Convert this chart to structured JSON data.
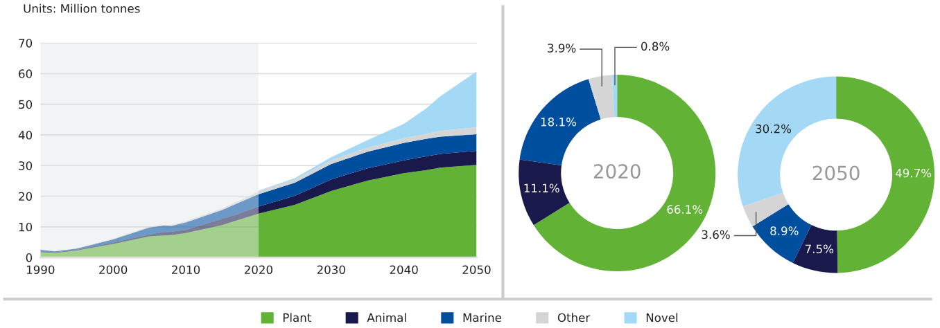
{
  "chart_data": [
    {
      "type": "area",
      "stacked": true,
      "ylabel": "Units: Million tonnes",
      "x": [
        1990,
        1992,
        1995,
        2000,
        2005,
        2007,
        2008,
        2010,
        2015,
        2017,
        2020,
        2025,
        2030,
        2035,
        2040,
        2043,
        2045,
        2050
      ],
      "series": [
        {
          "name": "Plant",
          "color": "#62b236",
          "values": [
            1.7,
            1.5,
            2.3,
            4.4,
            6.9,
            7.2,
            7.3,
            8.0,
            10.6,
            12.1,
            14.3,
            17.2,
            21.7,
            25.1,
            27.5,
            28.5,
            29.3,
            30.2
          ]
        },
        {
          "name": "Animal",
          "color": "#19194b",
          "values": [
            0.3,
            0.2,
            0.2,
            0.5,
            0.6,
            1.1,
            1.1,
            1.0,
            2.0,
            1.9,
            2.3,
            2.9,
            3.8,
            4.0,
            4.2,
            4.5,
            4.5,
            4.6
          ]
        },
        {
          "name": "Marine",
          "color": "#004f9e",
          "values": [
            0.5,
            0.3,
            0.4,
            1.0,
            2.3,
            2.1,
            1.9,
            2.4,
            2.9,
            3.6,
            4.0,
            4.3,
            5.0,
            5.4,
            5.7,
            5.7,
            5.6,
            5.4
          ]
        },
        {
          "name": "Other",
          "color": "#d5d5d5",
          "values": [
            0.1,
            0.1,
            0.1,
            0.2,
            0.3,
            0.3,
            0.3,
            0.4,
            0.5,
            0.6,
            1.0,
            1.1,
            1.2,
            1.3,
            1.5,
            1.6,
            1.9,
            2.3
          ]
        },
        {
          "name": "Novel",
          "color": "#a4d9f5",
          "values": [
            null,
            null,
            null,
            null,
            null,
            null,
            null,
            null,
            null,
            null,
            0.2,
            0.4,
            1.0,
            2.5,
            4.7,
            8.2,
            11.3,
            18.2
          ]
        }
      ],
      "xlim": [
        1990,
        2050
      ],
      "xticks": [
        1990,
        2000,
        2010,
        2020,
        2030,
        2040,
        2050
      ],
      "ylim": [
        0,
        70
      ],
      "yticks": [
        0,
        10,
        20,
        30,
        40,
        50,
        60,
        70
      ],
      "grid": "y",
      "legend": "bottom",
      "bands": [
        {
          "axis": "x",
          "from": 1990,
          "to": 2020,
          "color": "#f2f3f5"
        }
      ]
    },
    {
      "type": "donut",
      "categories": [
        null,
        null,
        null,
        null,
        null
      ],
      "values": [
        66.1,
        11.1,
        18.1,
        3.9,
        0.8
      ],
      "colors": [
        "#62b236",
        "#19194b",
        "#004f9e",
        "#d5d5d5",
        "#a4d9f5"
      ],
      "value_labels": [
        "66.1%",
        "11.1%",
        "18.1%",
        "3.9%",
        "0.8%"
      ],
      "annotations": [
        "2020"
      ]
    },
    {
      "type": "donut",
      "categories": [
        null,
        null,
        null,
        null,
        null
      ],
      "values": [
        49.7,
        7.5,
        8.9,
        3.6,
        30.2
      ],
      "colors": [
        "#62b236",
        "#19194b",
        "#004f9e",
        "#d5d5d5",
        "#a4d9f5"
      ],
      "value_labels": [
        "49.7%",
        "7.5%",
        "8.9%",
        "3.6%",
        "30.2%"
      ],
      "annotations": [
        "2050"
      ]
    }
  ]
}
